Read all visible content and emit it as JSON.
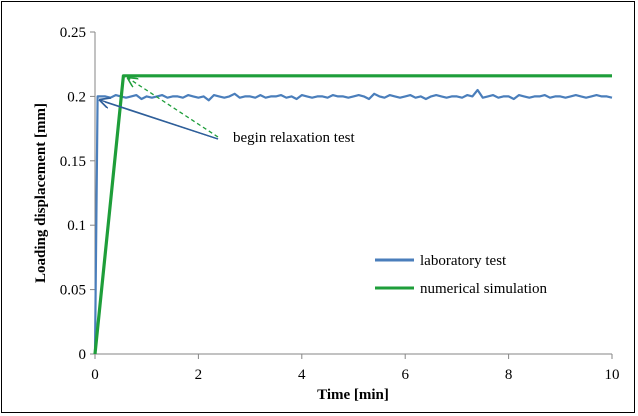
{
  "chart_data": {
    "type": "line",
    "title": "",
    "xlabel": "Time [min]",
    "ylabel": "Loading displacement [mm]",
    "xlim": [
      0,
      10
    ],
    "ylim": [
      0,
      0.25
    ],
    "x_ticks": [
      "0",
      "2",
      "4",
      "6",
      "8",
      "10"
    ],
    "y_ticks": [
      "0",
      "0.05",
      "0.1",
      "0.15",
      "0.2",
      "0.25"
    ],
    "grid": false,
    "legend_position": "lower-right",
    "annotation": "begin relaxation test",
    "series": [
      {
        "name": "laboratory test",
        "color": "#4a7ebb",
        "x": [
          0,
          0.05,
          0.1,
          0.2,
          0.3,
          0.4,
          0.5,
          0.6,
          0.7,
          0.8,
          0.9,
          1.0,
          1.1,
          1.2,
          1.3,
          1.4,
          1.5,
          1.6,
          1.7,
          1.8,
          1.9,
          2.0,
          2.1,
          2.2,
          2.3,
          2.4,
          2.5,
          2.6,
          2.7,
          2.8,
          2.9,
          3.0,
          3.1,
          3.2,
          3.3,
          3.4,
          3.5,
          3.6,
          3.7,
          3.8,
          3.9,
          4.0,
          4.1,
          4.2,
          4.3,
          4.4,
          4.5,
          4.6,
          4.7,
          4.8,
          4.9,
          5.0,
          5.1,
          5.2,
          5.3,
          5.4,
          5.5,
          5.6,
          5.7,
          5.8,
          5.9,
          6.0,
          6.1,
          6.2,
          6.3,
          6.4,
          6.5,
          6.6,
          6.7,
          6.8,
          6.9,
          7.0,
          7.1,
          7.2,
          7.3,
          7.4,
          7.5,
          7.6,
          7.7,
          7.8,
          7.9,
          8.0,
          8.1,
          8.2,
          8.3,
          8.4,
          8.5,
          8.6,
          8.7,
          8.8,
          8.9,
          9.0,
          9.1,
          9.2,
          9.3,
          9.4,
          9.5,
          9.6,
          9.7,
          9.8,
          9.9,
          10.0
        ],
        "values": [
          0,
          0.2,
          0.2,
          0.2,
          0.199,
          0.201,
          0.2,
          0.199,
          0.2,
          0.201,
          0.198,
          0.2,
          0.199,
          0.2,
          0.201,
          0.199,
          0.2,
          0.2,
          0.199,
          0.201,
          0.2,
          0.199,
          0.2,
          0.197,
          0.201,
          0.2,
          0.199,
          0.2,
          0.202,
          0.199,
          0.2,
          0.2,
          0.199,
          0.201,
          0.199,
          0.2,
          0.2,
          0.201,
          0.199,
          0.2,
          0.198,
          0.201,
          0.2,
          0.199,
          0.2,
          0.2,
          0.199,
          0.201,
          0.2,
          0.2,
          0.199,
          0.2,
          0.201,
          0.2,
          0.198,
          0.202,
          0.2,
          0.199,
          0.201,
          0.2,
          0.199,
          0.2,
          0.201,
          0.199,
          0.2,
          0.198,
          0.2,
          0.201,
          0.2,
          0.199,
          0.2,
          0.2,
          0.199,
          0.201,
          0.2,
          0.205,
          0.199,
          0.2,
          0.201,
          0.199,
          0.2,
          0.2,
          0.198,
          0.201,
          0.2,
          0.199,
          0.2,
          0.2,
          0.201,
          0.199,
          0.2,
          0.2,
          0.199,
          0.2,
          0.201,
          0.2,
          0.199,
          0.2,
          0.201,
          0.2,
          0.2,
          0.199
        ]
      },
      {
        "name": "numerical simulation",
        "color": "#1e9e3a",
        "x": [
          0,
          0.55,
          0.6,
          10
        ],
        "values": [
          0,
          0.216,
          0.216,
          0.216
        ]
      }
    ]
  }
}
